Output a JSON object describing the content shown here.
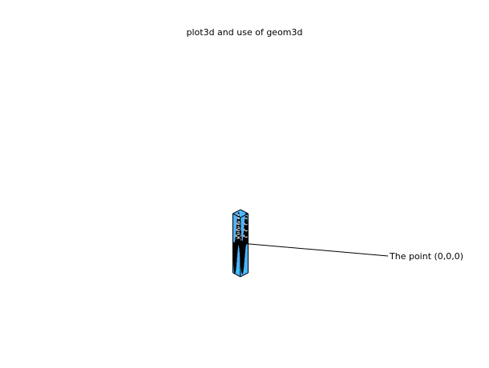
{
  "window": {
    "title": "plot3d and use of geom3d"
  },
  "chart_data": {
    "type": "surface3d",
    "title": "plot3d and use of geom3d",
    "surface": {
      "function": "sin(x)*cos(y)",
      "x_range": [
        -3.1416,
        3.1416
      ],
      "y_range": [
        -3.1416,
        3.1416
      ],
      "grid": [
        24,
        24
      ],
      "z_range": [
        -1,
        1
      ],
      "top_color": "#8b0000",
      "bottom_color": "#f0c000",
      "mesh_color": "#000000"
    },
    "contours": {
      "levels": [
        0.2,
        0.4,
        0.6,
        0.8,
        0.9
      ],
      "color": "#ffffff"
    },
    "box": {
      "back_color": "#4db3ff",
      "hidden_edge_color": "#00ffff",
      "edge_color": "#000000"
    },
    "annotations": [
      {
        "text": "The point (0,0,0)",
        "target": [
          0,
          0,
          0
        ]
      }
    ]
  }
}
